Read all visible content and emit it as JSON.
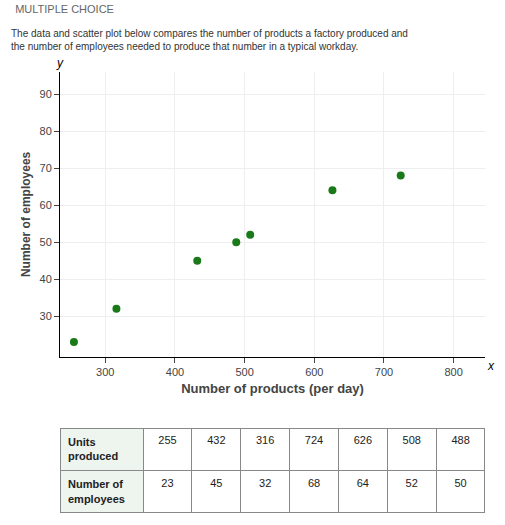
{
  "chart_data": {
    "type": "scatter",
    "title": "MULTIPLE CHOICE",
    "subtitle": "The data and scatter plot below compares the number of products a factory produced and\nthe number of employees needed to produce that number in a typical workday.",
    "x": [
      255,
      432,
      316,
      724,
      626,
      508,
      488
    ],
    "values": [
      23,
      45,
      32,
      68,
      64,
      52,
      50
    ],
    "color": "#1a7a1a",
    "xlabel": "Number of products (per day)",
    "ylabel": "Number of employees",
    "xlim": [
      235,
      845
    ],
    "ylim": [
      19,
      96
    ],
    "xticks": [
      300,
      400,
      500,
      600,
      700,
      800
    ],
    "yticks": [
      30,
      40,
      50,
      60,
      70,
      80,
      90
    ],
    "grid": true,
    "annotations": [
      {
        "text": "y",
        "x": 235,
        "y": 96
      },
      {
        "text": "x",
        "x": 845,
        "y": 19
      }
    ],
    "table": {
      "rows": [
        {
          "label": "Units\nproduced",
          "values": [
            255,
            432,
            316,
            724,
            626,
            508,
            488
          ]
        },
        {
          "label": "Number of\nemployees",
          "values": [
            23,
            45,
            32,
            68,
            64,
            52,
            50
          ]
        }
      ]
    }
  }
}
